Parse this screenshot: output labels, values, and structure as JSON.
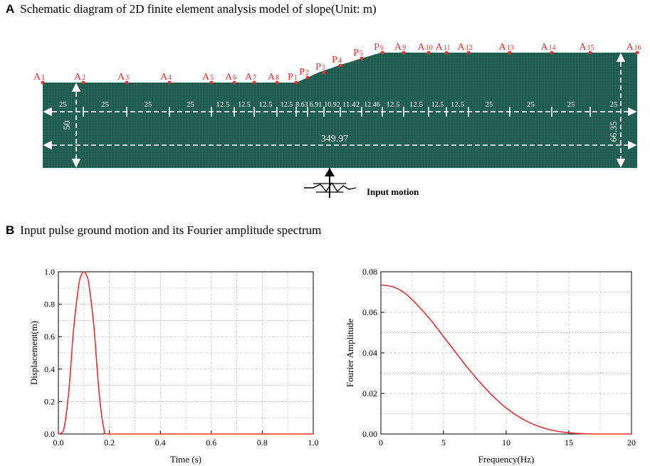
{
  "panel_a": {
    "letter": "A",
    "title": "Schematic diagram of 2D finite element analysis model of slope(Unit: m)",
    "mesh_color": "#1d5a4c",
    "label_color": "#e8302f",
    "point_labels": [
      {
        "prefix": "A",
        "sub": "1"
      },
      {
        "prefix": "A",
        "sub": "2"
      },
      {
        "prefix": "A",
        "sub": "3"
      },
      {
        "prefix": "A",
        "sub": "4"
      },
      {
        "prefix": "A",
        "sub": "5"
      },
      {
        "prefix": "A",
        "sub": "6"
      },
      {
        "prefix": "A",
        "sub": "7"
      },
      {
        "prefix": "A",
        "sub": "8"
      },
      {
        "prefix": "P",
        "sub": "1"
      },
      {
        "prefix": "P",
        "sub": "2"
      },
      {
        "prefix": "P",
        "sub": "3"
      },
      {
        "prefix": "P",
        "sub": "4"
      },
      {
        "prefix": "P",
        "sub": "5"
      },
      {
        "prefix": "P",
        "sub": "6"
      },
      {
        "prefix": "A",
        "sub": "9"
      },
      {
        "prefix": "A",
        "sub": "10"
      },
      {
        "prefix": "A",
        "sub": "11"
      },
      {
        "prefix": "A",
        "sub": "12"
      },
      {
        "prefix": "A",
        "sub": "13"
      },
      {
        "prefix": "A",
        "sub": "14"
      },
      {
        "prefix": "A",
        "sub": "15"
      },
      {
        "prefix": "A",
        "sub": "16"
      }
    ],
    "spacing_labels": [
      "25",
      "25",
      "25",
      "25",
      "12.5",
      "12.5",
      "12.5",
      "12.5",
      "8.63",
      "6.91",
      "10.92",
      "11.42",
      "12.46",
      "12.5",
      "12.5",
      "12.5",
      "12.5",
      "25",
      "25",
      "25",
      "25"
    ],
    "total_width_label": "349.97",
    "left_height_label": "50",
    "right_height_label": "66.35",
    "input_motion_label": "Input motion"
  },
  "panel_b": {
    "letter": "B",
    "title": "Input pulse ground motion and its Fourier amplitude spectrum"
  },
  "chart_data": [
    {
      "type": "line",
      "xlabel": "Time (s)",
      "ylabel": "Displacement(m)",
      "xlim": [
        0.0,
        1.0
      ],
      "ylim": [
        0.0,
        1.0
      ],
      "x_ticks": [
        "0.0",
        "0.2",
        "0.4",
        "0.6",
        "0.8",
        "1.0"
      ],
      "y_ticks": [
        "0.0",
        "0.2",
        "0.4",
        "0.6",
        "0.8",
        "1.0"
      ],
      "grid": true,
      "line_color": "#e8302f",
      "x": [
        0.0,
        0.02,
        0.04,
        0.06,
        0.08,
        0.09,
        0.1,
        0.11,
        0.12,
        0.14,
        0.16,
        0.18,
        0.2,
        0.4,
        0.6,
        0.8,
        1.0
      ],
      "y": [
        0.0,
        0.02,
        0.25,
        0.65,
        0.92,
        0.98,
        1.0,
        0.98,
        0.92,
        0.65,
        0.25,
        0.02,
        0.0,
        0.0,
        0.0,
        0.0,
        0.0
      ]
    },
    {
      "type": "line",
      "xlabel": "Frequency(Hz)",
      "ylabel": "Fourier Amplitude",
      "xlim": [
        0,
        20
      ],
      "ylim": [
        0.0,
        0.08
      ],
      "x_ticks": [
        "0",
        "5",
        "10",
        "15",
        "20"
      ],
      "y_ticks": [
        "0.00",
        "0.02",
        "0.04",
        "0.06",
        "0.08"
      ],
      "grid": true,
      "line_color": "#e8302f",
      "x": [
        0,
        1,
        2,
        3,
        4,
        5,
        6,
        7,
        8,
        9,
        10,
        11,
        12,
        13,
        14,
        15,
        16,
        17,
        18,
        19,
        20
      ],
      "y": [
        0.0735,
        0.0725,
        0.069,
        0.063,
        0.056,
        0.048,
        0.04,
        0.032,
        0.0248,
        0.0183,
        0.0128,
        0.0085,
        0.0052,
        0.0029,
        0.0014,
        0.0006,
        0.0002,
        0.0,
        0.0,
        0.0,
        0.0
      ]
    }
  ]
}
